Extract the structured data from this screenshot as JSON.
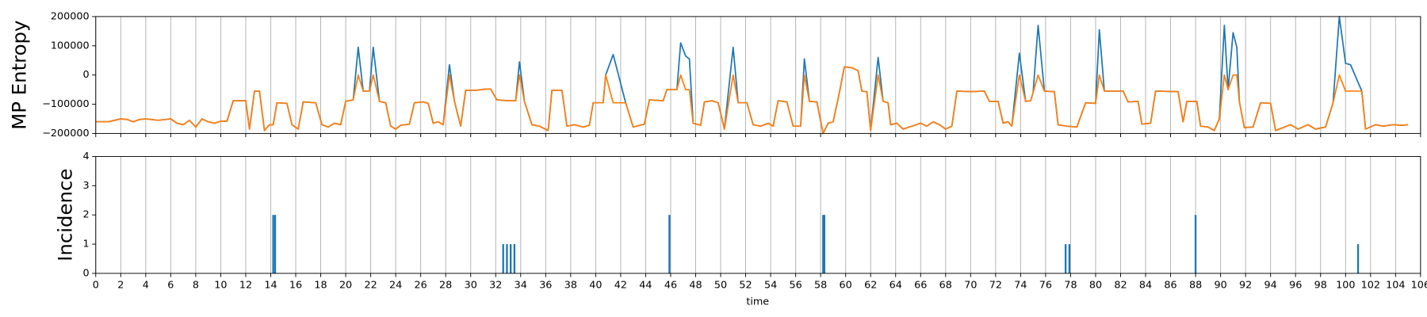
{
  "chart_data": [
    {
      "type": "line",
      "ylabel": "MP Entropy",
      "xlim": [
        0,
        106
      ],
      "xticks": [
        0,
        2,
        4,
        6,
        8,
        10,
        12,
        14,
        16,
        18,
        20,
        22,
        24,
        26,
        28,
        30,
        32,
        34,
        36,
        38,
        40,
        42,
        44,
        46,
        48,
        50,
        52,
        54,
        56,
        58,
        60,
        62,
        64,
        66,
        68,
        70,
        72,
        74,
        76,
        78,
        80,
        82,
        84,
        86,
        88,
        90,
        92,
        94,
        96,
        98,
        100,
        102,
        104,
        106
      ],
      "ylim": [
        -200000,
        200000
      ],
      "yticks": [
        {
          "value": -200000,
          "label": "−200000"
        },
        {
          "value": -100000,
          "label": "−100000"
        },
        0,
        100000,
        200000
      ],
      "grid": true,
      "x": [
        0,
        1,
        2,
        2.5,
        3,
        3.5,
        4,
        5,
        6,
        6.5,
        7,
        7.5,
        8,
        8.5,
        9,
        9.5,
        10,
        10.5,
        11,
        12,
        12.3,
        12.7,
        13.1,
        13.5,
        13.9,
        14.2,
        14.5,
        15.3,
        15.7,
        16.2,
        16.6,
        17.6,
        18.1,
        18.6,
        19.1,
        19.6,
        20,
        20.6,
        21,
        21.4,
        21.9,
        22.2,
        22.7,
        23.2,
        23.6,
        24,
        24.4,
        25.1,
        25.5,
        26.2,
        26.6,
        27,
        27.4,
        27.8,
        28.3,
        28.7,
        29.2,
        29.6,
        30.5,
        31.2,
        31.6,
        32.1,
        33,
        33.6,
        33.9,
        34.3,
        34.9,
        35.5,
        36.2,
        36.5,
        37.3,
        37.7,
        38.3,
        39,
        39.5,
        39.8,
        40.6,
        40.8,
        41.4,
        42.4,
        43,
        43.9,
        44.3,
        45.4,
        45.7,
        46.5,
        46.8,
        47.2,
        47.5,
        47.8,
        48.4,
        48.7,
        49.3,
        49.8,
        50.3,
        51,
        51.4,
        52.1,
        52.6,
        53.2,
        53.8,
        54.2,
        54.6,
        55.3,
        55.8,
        56.4,
        56.7,
        57.1,
        57.7,
        58.2,
        58.6,
        59,
        59.5,
        59.9,
        60.5,
        61,
        61.3,
        61.7,
        62,
        62.6,
        63,
        63.4,
        63.6,
        64.1,
        64.6,
        65.3,
        66,
        66.5,
        67,
        67.5,
        68,
        68.5,
        68.9,
        70,
        71.1,
        71.5,
        72.2,
        72.6,
        73,
        73.3,
        73.9,
        74.4,
        74.8,
        75,
        75.4,
        75.9,
        76.7,
        77,
        77.7,
        78.5,
        79.2,
        80,
        80.3,
        80.7,
        82.2,
        82.6,
        83.4,
        83.7,
        84.4,
        84.8,
        86.6,
        87,
        87.3,
        88.1,
        88.4,
        89,
        89.5,
        89.9,
        90.3,
        90.6,
        91,
        91.3,
        91.5,
        91.9,
        92.6,
        93.2,
        94,
        94.4,
        95,
        95.6,
        96.2,
        97,
        97.6,
        98.4,
        99,
        99.5,
        100,
        100.4,
        101.3,
        101.6,
        102.4,
        103,
        103.8,
        104.5,
        105
      ],
      "series": [
        {
          "color": "#1f77b4",
          "values": [
            -160000,
            -160000,
            -150000,
            -152000,
            -160000,
            -152000,
            -150000,
            -155000,
            -150000,
            -165000,
            -170000,
            -155000,
            -178000,
            -150000,
            -160000,
            -165000,
            -158000,
            -158000,
            -88000,
            -88000,
            -185000,
            -55000,
            -55000,
            -190000,
            -170000,
            -170000,
            -95000,
            -97000,
            -170000,
            -185000,
            -92000,
            -95000,
            -170000,
            -178000,
            -165000,
            -170000,
            -90000,
            -85000,
            95000,
            -55000,
            -55000,
            95000,
            -90000,
            -95000,
            -175000,
            -185000,
            -172000,
            -168000,
            -95000,
            -92000,
            -97000,
            -165000,
            -160000,
            -170000,
            35000,
            -90000,
            -175000,
            -52000,
            -52000,
            -48000,
            -48000,
            -85000,
            -88000,
            -88000,
            45000,
            -90000,
            -170000,
            -175000,
            -190000,
            -52000,
            -52000,
            -175000,
            -170000,
            -178000,
            -172000,
            -95000,
            -95000,
            0,
            70000,
            -95000,
            -178000,
            -168000,
            -85000,
            -88000,
            -50000,
            -50000,
            110000,
            65000,
            55000,
            -165000,
            -172000,
            -92000,
            -88000,
            -95000,
            -185000,
            95000,
            -95000,
            -95000,
            -170000,
            -175000,
            -165000,
            -175000,
            -88000,
            -92000,
            -175000,
            -175000,
            55000,
            -90000,
            -92000,
            -200000,
            -165000,
            -160000,
            -60000,
            28000,
            25000,
            15000,
            -55000,
            -57000,
            -190000,
            60000,
            -90000,
            -95000,
            -170000,
            -165000,
            -185000,
            -175000,
            -165000,
            -175000,
            -160000,
            -170000,
            -185000,
            -175000,
            -55000,
            -57000,
            -55000,
            -90000,
            -90000,
            -165000,
            -160000,
            -175000,
            75000,
            -90000,
            -88000,
            -60000,
            170000,
            -55000,
            -57000,
            -170000,
            -175000,
            -178000,
            -95000,
            -97000,
            155000,
            -55000,
            -55000,
            -92000,
            -90000,
            -168000,
            -165000,
            -55000,
            -57000,
            -160000,
            -90000,
            -90000,
            -175000,
            -178000,
            -190000,
            -150000,
            170000,
            -50000,
            145000,
            95000,
            -90000,
            -180000,
            -178000,
            -95000,
            -97000,
            -190000,
            -180000,
            -170000,
            -185000,
            -170000,
            -185000,
            -178000,
            -95000,
            200000,
            40000,
            35000,
            -55000,
            -185000,
            -170000,
            -175000,
            -170000,
            -172000,
            -170000
          ]
        },
        {
          "color": "#ff7f0e",
          "values": [
            -160000,
            -160000,
            -150000,
            -152000,
            -160000,
            -152000,
            -150000,
            -155000,
            -150000,
            -165000,
            -170000,
            -155000,
            -178000,
            -150000,
            -160000,
            -165000,
            -158000,
            -158000,
            -88000,
            -88000,
            -185000,
            -55000,
            -55000,
            -190000,
            -170000,
            -170000,
            -95000,
            -97000,
            -170000,
            -185000,
            -92000,
            -95000,
            -170000,
            -178000,
            -165000,
            -170000,
            -90000,
            -85000,
            0,
            -55000,
            -55000,
            0,
            -90000,
            -95000,
            -175000,
            -185000,
            -172000,
            -168000,
            -95000,
            -92000,
            -97000,
            -165000,
            -160000,
            -170000,
            0,
            -90000,
            -175000,
            -52000,
            -52000,
            -48000,
            -48000,
            -85000,
            -88000,
            -88000,
            0,
            -90000,
            -170000,
            -175000,
            -190000,
            -52000,
            -52000,
            -175000,
            -170000,
            -178000,
            -172000,
            -95000,
            -95000,
            0,
            -95000,
            -95000,
            -178000,
            -168000,
            -85000,
            -88000,
            -50000,
            -50000,
            0,
            -50000,
            -50000,
            -165000,
            -172000,
            -92000,
            -88000,
            -95000,
            -185000,
            0,
            -95000,
            -95000,
            -170000,
            -175000,
            -165000,
            -175000,
            -88000,
            -92000,
            -175000,
            -175000,
            0,
            -90000,
            -92000,
            -200000,
            -165000,
            -160000,
            -60000,
            28000,
            25000,
            15000,
            -55000,
            -57000,
            -190000,
            0,
            -90000,
            -95000,
            -170000,
            -165000,
            -185000,
            -175000,
            -165000,
            -175000,
            -160000,
            -170000,
            -185000,
            -175000,
            -55000,
            -57000,
            -55000,
            -90000,
            -90000,
            -165000,
            -160000,
            -175000,
            0,
            -90000,
            -88000,
            -60000,
            0,
            -55000,
            -57000,
            -170000,
            -175000,
            -178000,
            -95000,
            -97000,
            0,
            -55000,
            -55000,
            -92000,
            -90000,
            -168000,
            -165000,
            -55000,
            -57000,
            -160000,
            -90000,
            -90000,
            -175000,
            -178000,
            -190000,
            -150000,
            0,
            -50000,
            0,
            0,
            -90000,
            -180000,
            -178000,
            -95000,
            -97000,
            -190000,
            -180000,
            -170000,
            -185000,
            -170000,
            -185000,
            -178000,
            -95000,
            0,
            -55000,
            -55000,
            -55000,
            -185000,
            -170000,
            -175000,
            -170000,
            -172000,
            -170000
          ]
        }
      ]
    },
    {
      "type": "bar",
      "ylabel": "Incidence",
      "xlabel": "time",
      "xlim": [
        0,
        106
      ],
      "xticks": [
        0,
        2,
        4,
        6,
        8,
        10,
        12,
        14,
        16,
        18,
        20,
        22,
        24,
        26,
        28,
        30,
        32,
        34,
        36,
        38,
        40,
        42,
        44,
        46,
        48,
        50,
        52,
        54,
        56,
        58,
        60,
        62,
        64,
        66,
        68,
        70,
        72,
        74,
        76,
        78,
        80,
        82,
        84,
        86,
        88,
        90,
        92,
        94,
        96,
        98,
        100,
        102,
        104,
        106
      ],
      "ylim": [
        0,
        4
      ],
      "yticks": [
        0,
        1,
        2,
        3,
        4
      ],
      "grid": true,
      "color": "#1f77b4",
      "x": [
        14.2,
        14.35,
        32.6,
        32.9,
        33.2,
        33.5,
        45.9,
        58.2,
        58.3,
        77.6,
        77.9,
        88,
        101
      ],
      "values": [
        2,
        2,
        1,
        1,
        1,
        1,
        2,
        2,
        2,
        1,
        1,
        2,
        1
      ]
    }
  ]
}
